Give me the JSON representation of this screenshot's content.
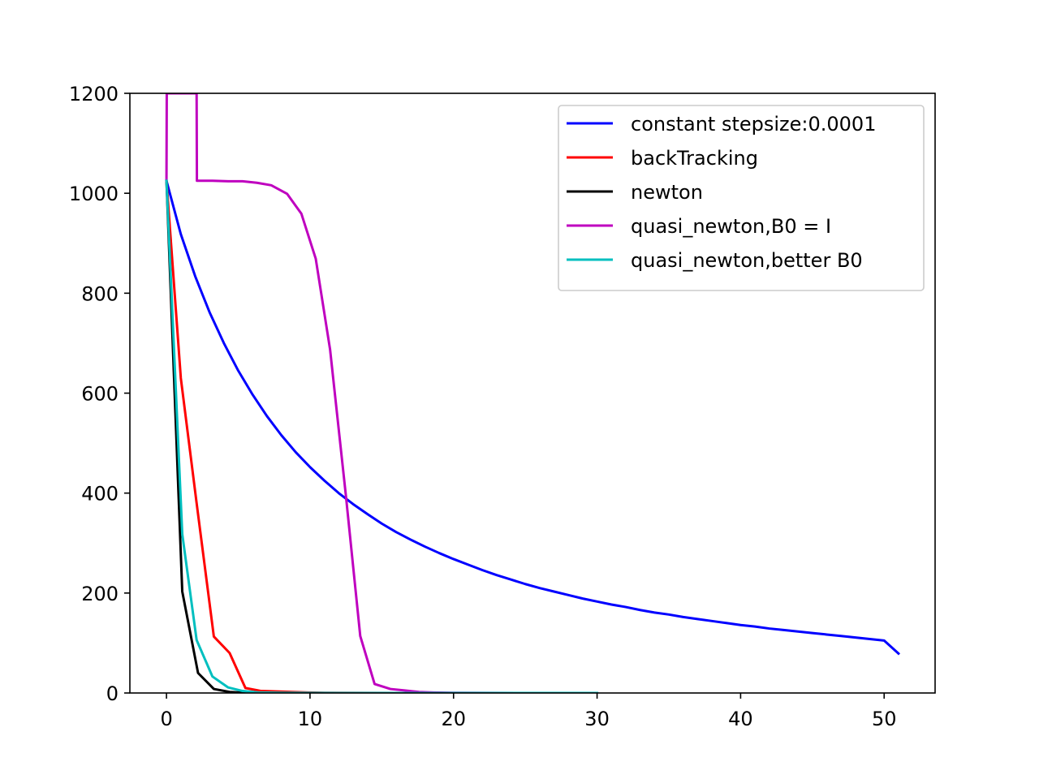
{
  "chart_data": {
    "type": "line",
    "title": "",
    "xlabel": "",
    "ylabel": "",
    "xlim": [
      -2.55,
      53.55
    ],
    "ylim": [
      0,
      1200
    ],
    "x_ticks": [
      0,
      10,
      20,
      30,
      40,
      50
    ],
    "y_ticks": [
      0,
      200,
      400,
      600,
      800,
      1000,
      1200
    ],
    "grid": false,
    "legend_position": "top-right",
    "series": [
      {
        "name": "constant stepsize:0.0001",
        "color": "#0000ff",
        "x": [
          0,
          1,
          2,
          3,
          4,
          5,
          6,
          7,
          8,
          9,
          10,
          11,
          12,
          13,
          14,
          15,
          16,
          17,
          18,
          19,
          20,
          21,
          22,
          23,
          24,
          25,
          26,
          27,
          28,
          29,
          30,
          31,
          32,
          33,
          34,
          35,
          36,
          37,
          38,
          39,
          40,
          41,
          42,
          43,
          44,
          45,
          46,
          47,
          48,
          49,
          50,
          51
        ],
        "y": [
          1025,
          918,
          834,
          762,
          700,
          645,
          597,
          554,
          516,
          482,
          452,
          425,
          400,
          378,
          358,
          339,
          322,
          307,
          293,
          280,
          268,
          257,
          246,
          236,
          227,
          218,
          210,
          203,
          196,
          189,
          183,
          177,
          172,
          166,
          161,
          157,
          152,
          148,
          144,
          140,
          136,
          133,
          129,
          126,
          123,
          120,
          117,
          114,
          111,
          108,
          105,
          79
        ]
      },
      {
        "name": "backTracking",
        "color": "#ff0000",
        "x": [
          0,
          1.0,
          2.1,
          3.3,
          4.4,
          5.5,
          6.6,
          7.7,
          8.8,
          9.9,
          11,
          14,
          18,
          22,
          30
        ],
        "y": [
          1025,
          630,
          380,
          113,
          80,
          10,
          4,
          3,
          2,
          1,
          0.5,
          0.2,
          0,
          0,
          0
        ]
      },
      {
        "name": "newton",
        "color": "#000000",
        "x": [
          0,
          1.1,
          2.2,
          3.3,
          4.4,
          5.5,
          8,
          12,
          20
        ],
        "y": [
          1025,
          203,
          40,
          8,
          2,
          0.5,
          0,
          0,
          0
        ]
      },
      {
        "name": "quasi_newton,B0 = I",
        "color": "#bf00bf",
        "x": [
          0,
          0.02,
          1.05,
          2.1,
          2.12,
          3.2,
          4.3,
          5.3,
          6.3,
          7.3,
          8.4,
          9.4,
          10.4,
          11.4,
          12.5,
          13.5,
          14.5,
          15.6,
          16.6,
          17.6,
          18.6,
          20,
          25,
          30
        ],
        "y": [
          1025,
          1200,
          1200,
          1200,
          1025,
          1025,
          1024,
          1024,
          1021,
          1016,
          999,
          959,
          869,
          687,
          395,
          114,
          18,
          8,
          5,
          2,
          1,
          0.5,
          0,
          0
        ]
      },
      {
        "name": "quasi_newton,better B0",
        "color": "#00bfbf",
        "x": [
          0,
          1.1,
          2.1,
          3.2,
          4.3,
          5.3,
          6.4,
          8,
          12,
          20,
          30
        ],
        "y": [
          1025,
          318,
          106,
          33,
          11,
          4,
          1,
          0.5,
          0,
          0,
          0
        ]
      }
    ]
  }
}
